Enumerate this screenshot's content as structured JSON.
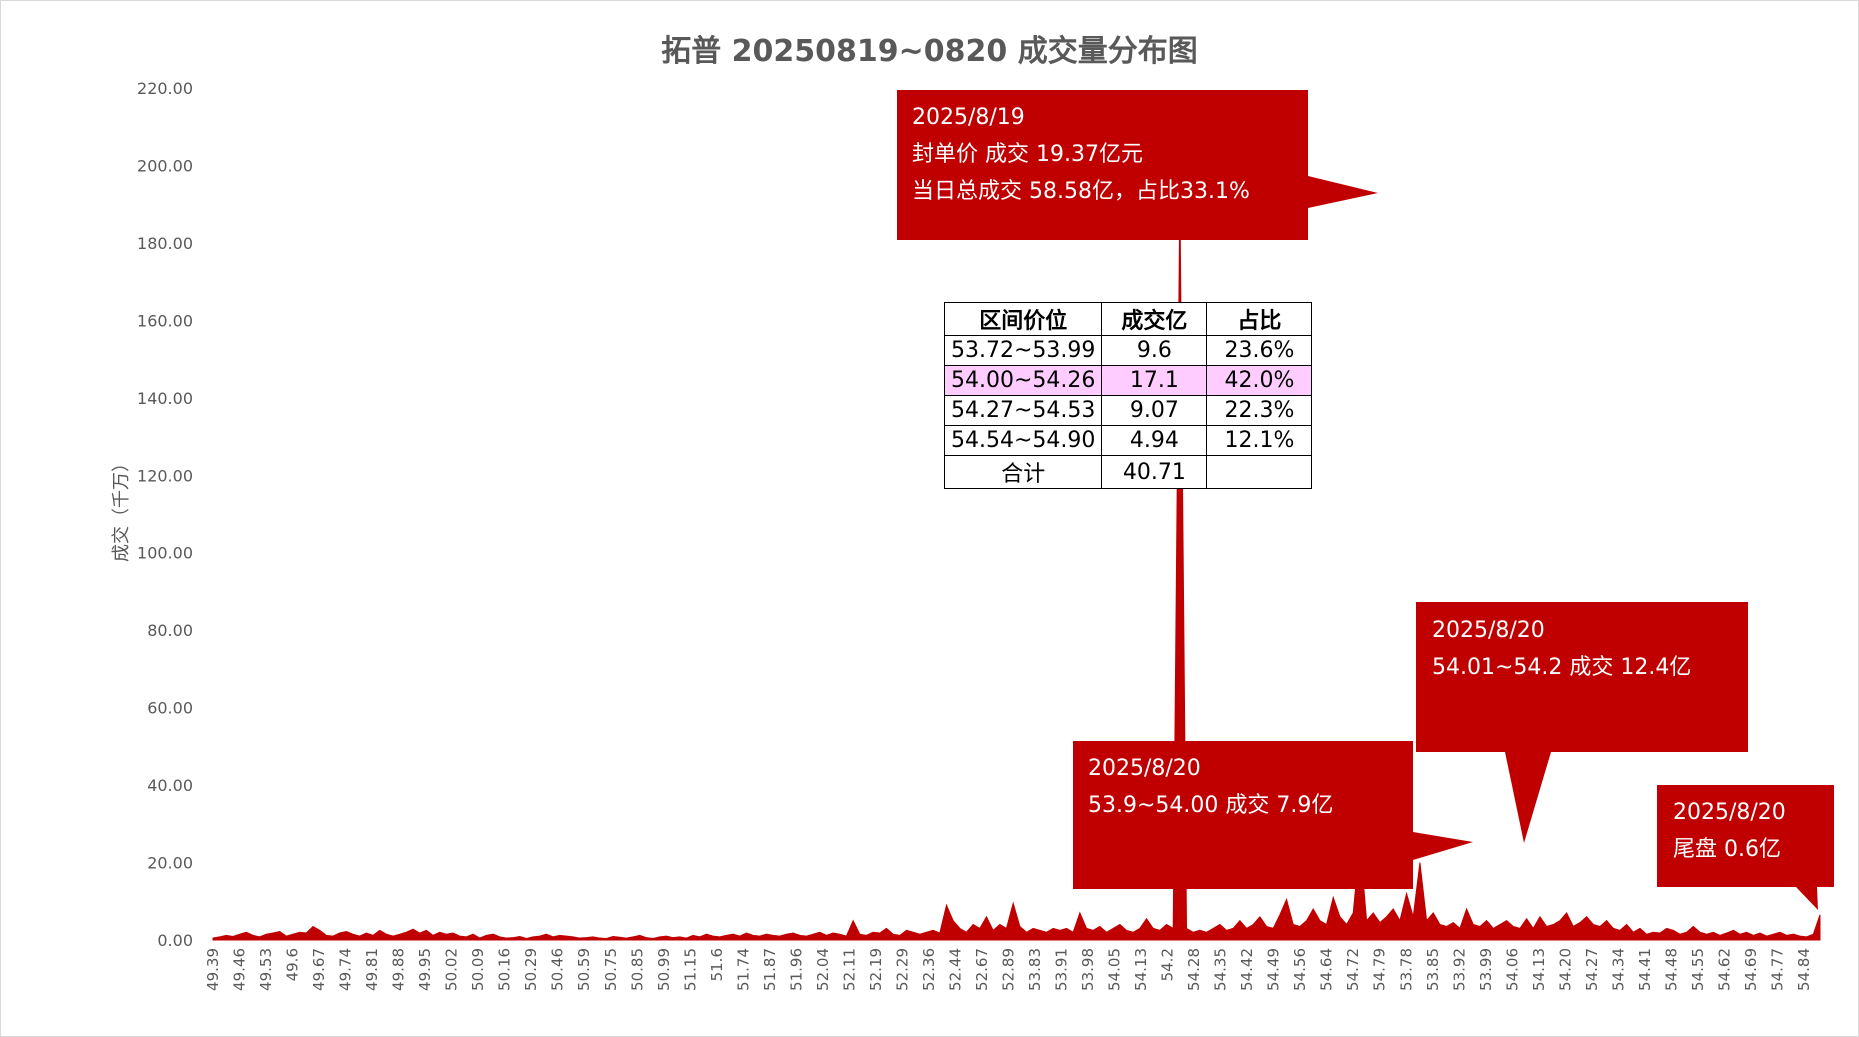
{
  "chart_data": {
    "type": "area",
    "title": "拓普 20250819~0820 成交量分布图",
    "ylabel": "成交（千万）",
    "xlabel": "",
    "ylim": [
      0,
      220
    ],
    "y_ticks": [
      "0.00",
      "20.00",
      "40.00",
      "60.00",
      "80.00",
      "100.00",
      "120.00",
      "140.00",
      "160.00",
      "180.00",
      "200.00",
      "220.00"
    ],
    "x_tick_labels": [
      "49.39",
      "49.46",
      "49.53",
      "49.6",
      "49.67",
      "49.74",
      "49.81",
      "49.88",
      "49.95",
      "50.02",
      "50.09",
      "50.16",
      "50.29",
      "50.46",
      "50.59",
      "50.75",
      "50.85",
      "50.99",
      "51.15",
      "51.6",
      "51.74",
      "51.87",
      "51.96",
      "52.04",
      "52.11",
      "52.19",
      "52.29",
      "52.36",
      "52.44",
      "52.67",
      "52.89",
      "53.83",
      "53.91",
      "53.98",
      "54.05",
      "54.13",
      "54.2",
      "54.28",
      "54.35",
      "54.42",
      "54.49",
      "54.56",
      "54.64",
      "54.72",
      "54.79",
      "53.78",
      "53.85",
      "53.92",
      "53.99",
      "54.06",
      "54.13",
      "54.20",
      "54.27",
      "54.34",
      "54.41",
      "54.48",
      "54.55",
      "54.62",
      "54.69",
      "54.77",
      "54.84"
    ],
    "series": [
      {
        "values": [
          0.5,
          0.8,
          1.2,
          0.9,
          1.5,
          2.0,
          1.2,
          0.8,
          1.5,
          1.8,
          2.2,
          1.0,
          1.5,
          2.0,
          1.8,
          3.5,
          2.5,
          1.2,
          1.0,
          1.8,
          2.2,
          1.5,
          1.0,
          1.8,
          1.2,
          2.5,
          1.5,
          1.0,
          1.5,
          2.0,
          2.8,
          1.8,
          2.5,
          1.2,
          2.0,
          1.5,
          1.8,
          1.0,
          0.8,
          1.5,
          0.5,
          1.2,
          1.5,
          0.8,
          0.5,
          0.6,
          0.9,
          0.4,
          0.8,
          1.0,
          1.5,
          0.8,
          1.2,
          1.0,
          0.8,
          0.5,
          0.6,
          0.8,
          0.5,
          0.4,
          0.9,
          0.7,
          0.5,
          0.8,
          1.2,
          0.6,
          0.4,
          0.8,
          1.0,
          0.6,
          0.8,
          0.5,
          1.2,
          0.8,
          1.5,
          1.0,
          0.8,
          1.2,
          1.5,
          1.0,
          1.8,
          1.2,
          1.0,
          1.5,
          1.2,
          1.0,
          1.5,
          1.8,
          1.2,
          1.0,
          1.5,
          2.0,
          1.2,
          1.8,
          1.5,
          1.0,
          5.0,
          1.5,
          1.2,
          2.0,
          1.8,
          3.0,
          1.5,
          1.2,
          2.5,
          2.0,
          1.5,
          2.0,
          2.5,
          1.8,
          9.0,
          5.0,
          3.0,
          2.0,
          4.0,
          3.0,
          6.0,
          2.5,
          4.0,
          3.0,
          9.5,
          3.5,
          2.0,
          3.0,
          2.5,
          2.0,
          3.0,
          2.5,
          3.0,
          2.0,
          7.0,
          3.0,
          2.5,
          3.5,
          2.0,
          3.0,
          4.0,
          2.5,
          2.0,
          3.0,
          5.5,
          3.0,
          2.5,
          4.0,
          3.0,
          193.0,
          3.0,
          2.0,
          2.5,
          2.0,
          3.0,
          4.0,
          2.5,
          3.0,
          5.0,
          3.0,
          4.0,
          6.0,
          3.5,
          3.0,
          6.5,
          10.5,
          4.0,
          3.5,
          5.0,
          8.0,
          5.0,
          4.0,
          11.0,
          6.0,
          4.0,
          7.0,
          25.5,
          5.0,
          7.0,
          4.5,
          6.0,
          8.0,
          5.0,
          12.0,
          6.0,
          20.0,
          5.0,
          7.0,
          4.0,
          3.5,
          4.5,
          3.0,
          8.0,
          4.0,
          3.5,
          5.0,
          3.0,
          4.0,
          5.0,
          3.5,
          3.0,
          5.5,
          3.0,
          6.0,
          3.5,
          4.0,
          5.0,
          7.0,
          3.5,
          4.5,
          6.0,
          4.0,
          3.5,
          5.0,
          3.0,
          2.5,
          4.0,
          2.0,
          3.0,
          1.5,
          2.0,
          1.8,
          3.0,
          2.5,
          1.5,
          2.0,
          3.5,
          2.0,
          1.5,
          2.0,
          1.2,
          1.8,
          2.5,
          1.5,
          2.0,
          1.2,
          1.8,
          1.0,
          1.5,
          2.0,
          1.2,
          1.5,
          1.0,
          0.8,
          1.5,
          6.5
        ]
      }
    ],
    "grid": false,
    "legend": "none",
    "colors": {
      "fill": "#c00000",
      "callout": "#c00000",
      "axis_text": "#595959"
    }
  },
  "callouts": [
    {
      "lines": [
        "2025/8/19",
        "封单价 成交 19.37亿元",
        "当日总成交 58.58亿，占比33.1%"
      ]
    },
    {
      "lines": [
        "2025/8/20",
        "54.01~54.2  成交 12.4亿"
      ]
    },
    {
      "lines": [
        "2025/8/20",
        "53.9~54.00  成交 7.9亿"
      ]
    },
    {
      "lines": [
        "2025/8/20",
        "尾盘 0.6亿"
      ]
    }
  ],
  "table": {
    "headers": [
      "区间价位",
      "成交亿",
      "占比"
    ],
    "rows": [
      [
        "53.72~53.99",
        "9.6",
        "23.6%"
      ],
      [
        "54.00~54.26",
        "17.1",
        "42.0%"
      ],
      [
        "54.27~54.53",
        "9.07",
        "22.3%"
      ],
      [
        "54.54~54.90",
        "4.94",
        "12.1%"
      ],
      [
        "合计",
        "40.71",
        ""
      ]
    ],
    "highlight_row": 1
  }
}
